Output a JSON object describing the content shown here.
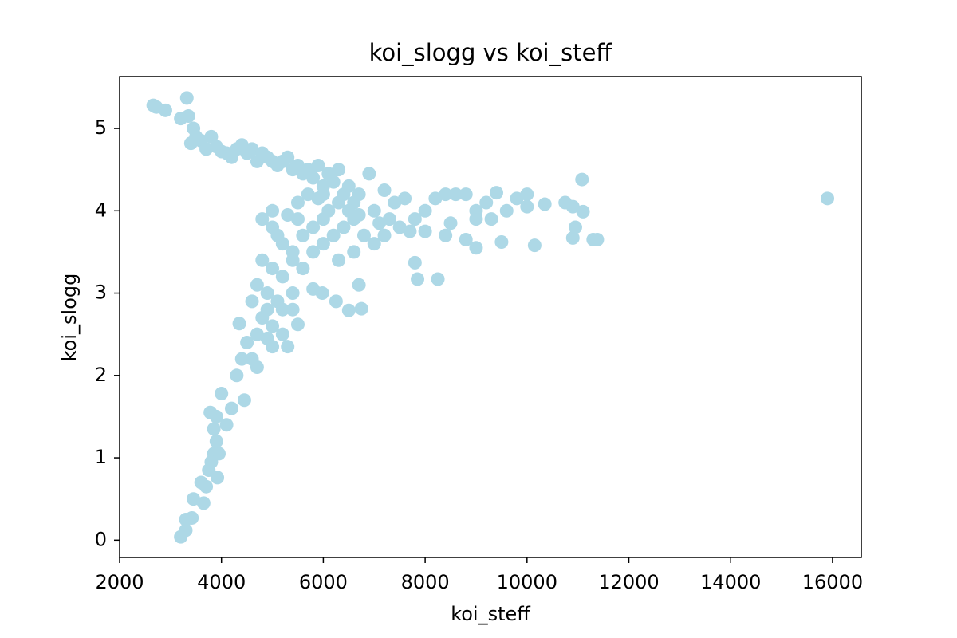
{
  "chart_data": {
    "type": "scatter",
    "title": "koi_slogg vs koi_steff",
    "x_label": "koi_steff",
    "y_label": "koi_slogg",
    "color": "#add8e6",
    "xlim": [
      2000,
      16565
    ],
    "ylim": [
      -0.21,
      5.63
    ],
    "xticks": [
      2000,
      4000,
      6000,
      8000,
      10000,
      12000,
      14000,
      16000
    ],
    "yticks": [
      0,
      1,
      2,
      3,
      4,
      5
    ],
    "x": [
      2660,
      2720,
      2900,
      3200,
      3320,
      3350,
      3400,
      3450,
      3500,
      3600,
      3700,
      3800,
      3900,
      4000,
      4100,
      4200,
      4300,
      4400,
      4500,
      4600,
      4700,
      4800,
      4900,
      5000,
      5100,
      5200,
      5300,
      5400,
      5500,
      5600,
      5700,
      5800,
      5900,
      6000,
      6100,
      6200,
      6300,
      6400,
      6500,
      6600,
      6700,
      6900,
      7000,
      7200,
      7400,
      7600,
      7800,
      8000,
      8200,
      8400,
      8600,
      8800,
      9000,
      9200,
      9400,
      9600,
      9800,
      10000,
      10000,
      10350,
      10750,
      10900,
      11100,
      11080,
      10950,
      10900,
      11300,
      11380,
      15900,
      10150,
      9500,
      9000,
      8800,
      8400,
      8250,
      7850,
      7800,
      6750,
      6500,
      6700,
      6250,
      5980,
      5800,
      5500,
      5300,
      5400,
      5200,
      5000,
      4900,
      4800,
      4700,
      4600,
      4500,
      4400,
      4350,
      4300,
      4450,
      4200,
      4100,
      4000,
      3900,
      3850,
      3780,
      3900,
      3950,
      3850,
      3800,
      3750,
      3700,
      3600,
      3650,
      3920,
      3450,
      3420,
      3300,
      3300,
      3200,
      4800,
      5000,
      5200,
      5400,
      5600,
      5800,
      6000,
      6200,
      6400,
      6600,
      6800,
      7000,
      7200,
      5000,
      5200,
      5400,
      5600,
      5800,
      6000,
      6300,
      6600,
      4700,
      4900,
      5100,
      4600,
      4800,
      5100,
      5300,
      5500,
      5700,
      5900,
      6100,
      6300,
      6500,
      6700,
      7100,
      7300,
      7500,
      7700,
      8000,
      8500,
      9000,
      9300,
      5000,
      5500,
      6000,
      4900,
      5000,
      5200,
      5400,
      4700
    ],
    "values": [
      5.28,
      5.26,
      5.22,
      5.12,
      5.37,
      5.15,
      4.82,
      5.0,
      4.9,
      4.85,
      4.75,
      4.9,
      4.78,
      4.72,
      4.7,
      4.65,
      4.75,
      4.8,
      4.7,
      4.75,
      4.6,
      4.7,
      4.65,
      4.6,
      4.55,
      4.6,
      4.65,
      4.5,
      4.55,
      4.45,
      4.5,
      4.4,
      4.55,
      4.3,
      4.45,
      4.35,
      4.5,
      4.2,
      4.3,
      4.1,
      4.2,
      4.45,
      4.0,
      4.25,
      4.1,
      4.15,
      3.9,
      4.0,
      4.15,
      4.2,
      4.2,
      4.2,
      4.0,
      4.1,
      4.22,
      4.0,
      4.15,
      4.2,
      4.05,
      4.08,
      4.1,
      4.05,
      3.99,
      4.38,
      3.8,
      3.67,
      3.65,
      3.65,
      4.15,
      3.58,
      3.62,
      3.55,
      3.65,
      3.7,
      3.17,
      3.17,
      3.37,
      2.81,
      2.79,
      3.1,
      2.9,
      3.0,
      3.05,
      2.62,
      2.35,
      2.8,
      2.5,
      2.35,
      2.45,
      2.7,
      2.1,
      2.2,
      2.4,
      2.2,
      2.63,
      2.0,
      1.7,
      1.6,
      1.4,
      1.78,
      1.5,
      1.35,
      1.55,
      1.2,
      1.05,
      1.05,
      0.95,
      0.85,
      0.65,
      0.7,
      0.45,
      0.76,
      0.5,
      0.27,
      0.25,
      0.12,
      0.04,
      3.9,
      3.8,
      3.6,
      3.5,
      3.7,
      3.8,
      3.9,
      3.7,
      3.8,
      3.9,
      3.7,
      3.6,
      3.7,
      3.3,
      3.2,
      3.4,
      3.3,
      3.5,
      3.6,
      3.4,
      3.5,
      3.1,
      3.0,
      2.9,
      2.9,
      3.4,
      3.7,
      3.95,
      4.1,
      4.2,
      4.15,
      4.0,
      4.1,
      4.0,
      3.95,
      3.85,
      3.9,
      3.8,
      3.75,
      3.75,
      3.85,
      3.9,
      3.9,
      4.0,
      3.9,
      4.2,
      2.8,
      2.6,
      2.8,
      3.0,
      2.5
    ]
  }
}
